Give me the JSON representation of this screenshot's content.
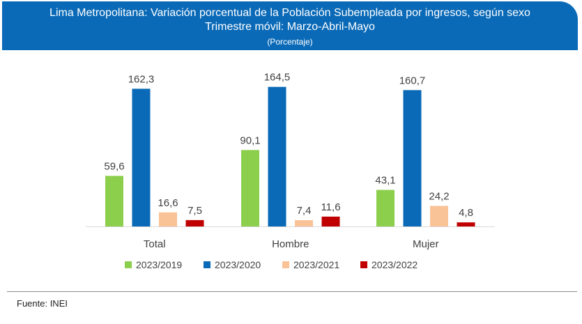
{
  "header": {
    "title_line1": "Lima Metropolitana: Variación porcentual  de la Población Subempleada por ingresos, según sexo",
    "title_line2": "Trimestre móvil: Marzo-Abril-Mayo",
    "subtitle": "(Porcentaje)"
  },
  "colors": {
    "header_bg": "#0a6ab7"
  },
  "chart_data": {
    "type": "bar",
    "title": "Lima Metropolitana: Variación porcentual  de la Población Subempleada por ingresos, según sexo",
    "subtitle": "Trimestre móvil: Marzo-Abril-Mayo",
    "ylabel": "(Porcentaje)",
    "xlabel": "",
    "ylim": [
      0,
      170
    ],
    "grid": false,
    "legend_position": "bottom",
    "categories": [
      "Total",
      "Hombre",
      "Mujer"
    ],
    "series": [
      {
        "name": "2023/2019",
        "color": "#8ccf4d",
        "values": [
          59.6,
          90.1,
          43.1
        ],
        "labels": [
          "59,6",
          "90,1",
          "43,1"
        ]
      },
      {
        "name": "2023/2020",
        "color": "#0a6ab7",
        "values": [
          162.3,
          164.5,
          160.7
        ],
        "labels": [
          "162,3",
          "164,5",
          "160,7"
        ]
      },
      {
        "name": "2023/2021",
        "color": "#f9c297",
        "values": [
          16.6,
          7.4,
          24.2
        ],
        "labels": [
          "16,6",
          "7,4",
          "24,2"
        ]
      },
      {
        "name": "2023/2022",
        "color": "#c00000",
        "values": [
          7.5,
          11.6,
          4.8
        ],
        "labels": [
          "7,5",
          "11,6",
          "4,8"
        ]
      }
    ]
  },
  "footer": {
    "source": "Fuente: INEI"
  }
}
